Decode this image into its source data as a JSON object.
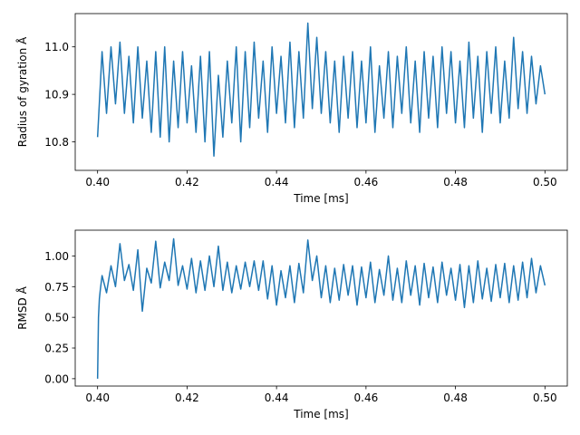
{
  "chart_data": [
    {
      "type": "line",
      "title": "",
      "xlabel": "Time [ms]",
      "ylabel": "Radius of gyration Å",
      "xlim": [
        0.395,
        0.505
      ],
      "ylim": [
        10.74,
        11.07
      ],
      "xticks": [
        0.4,
        0.42,
        0.44,
        0.46,
        0.48,
        0.5
      ],
      "xtick_labels": [
        "0.40",
        "0.42",
        "0.44",
        "0.46",
        "0.48",
        "0.50"
      ],
      "yticks": [
        10.8,
        10.9,
        11.0
      ],
      "ytick_labels": [
        "10.8",
        "10.9",
        "11.0"
      ],
      "grid": false,
      "color": "#1f77b4",
      "series": [
        {
          "x": [
            0.4,
            0.401,
            0.402,
            0.403,
            0.404,
            0.405,
            0.406,
            0.407,
            0.408,
            0.409,
            0.41,
            0.411,
            0.412,
            0.413,
            0.414,
            0.415,
            0.416,
            0.417,
            0.418,
            0.419,
            0.42,
            0.421,
            0.422,
            0.423,
            0.424,
            0.425,
            0.426,
            0.427,
            0.428,
            0.429,
            0.43,
            0.431,
            0.432,
            0.433,
            0.434,
            0.435,
            0.436,
            0.437,
            0.438,
            0.439,
            0.44,
            0.441,
            0.442,
            0.443,
            0.444,
            0.445,
            0.446,
            0.447,
            0.448,
            0.449,
            0.45,
            0.451,
            0.452,
            0.453,
            0.454,
            0.455,
            0.456,
            0.457,
            0.458,
            0.459,
            0.46,
            0.461,
            0.462,
            0.463,
            0.464,
            0.465,
            0.466,
            0.467,
            0.468,
            0.469,
            0.47,
            0.471,
            0.472,
            0.473,
            0.474,
            0.475,
            0.476,
            0.477,
            0.478,
            0.479,
            0.48,
            0.481,
            0.482,
            0.483,
            0.484,
            0.485,
            0.486,
            0.487,
            0.488,
            0.489,
            0.49,
            0.491,
            0.492,
            0.493,
            0.494,
            0.495,
            0.496,
            0.497,
            0.498,
            0.499,
            0.5
          ],
          "y": [
            10.81,
            10.99,
            10.86,
            11.0,
            10.88,
            11.01,
            10.86,
            10.98,
            10.84,
            11.0,
            10.85,
            10.97,
            10.82,
            10.99,
            10.81,
            11.0,
            10.8,
            10.97,
            10.83,
            10.99,
            10.84,
            10.96,
            10.82,
            10.98,
            10.8,
            10.99,
            10.77,
            10.94,
            10.81,
            10.97,
            10.84,
            11.0,
            10.8,
            10.99,
            10.83,
            11.01,
            10.85,
            10.97,
            10.82,
            11.0,
            10.86,
            10.98,
            10.84,
            11.01,
            10.83,
            10.99,
            10.85,
            11.05,
            10.87,
            11.02,
            10.86,
            10.99,
            10.84,
            10.97,
            10.82,
            10.98,
            10.85,
            10.99,
            10.83,
            10.97,
            10.84,
            11.0,
            10.82,
            10.96,
            10.85,
            10.99,
            10.83,
            10.98,
            10.86,
            11.0,
            10.84,
            10.97,
            10.82,
            10.99,
            10.85,
            10.98,
            10.83,
            11.0,
            10.86,
            10.99,
            10.84,
            10.97,
            10.83,
            11.01,
            10.85,
            10.98,
            10.82,
            10.99,
            10.86,
            11.0,
            10.84,
            10.97,
            10.85,
            11.02,
            10.87,
            10.99,
            10.86,
            10.98,
            10.88,
            10.96,
            10.9
          ]
        }
      ]
    },
    {
      "type": "line",
      "title": "",
      "xlabel": "Time [ms]",
      "ylabel": "RMSD Å",
      "xlim": [
        0.395,
        0.505
      ],
      "ylim": [
        -0.06,
        1.21
      ],
      "xticks": [
        0.4,
        0.42,
        0.44,
        0.46,
        0.48,
        0.5
      ],
      "xtick_labels": [
        "0.40",
        "0.42",
        "0.44",
        "0.46",
        "0.48",
        "0.50"
      ],
      "yticks": [
        0.0,
        0.25,
        0.5,
        0.75,
        1.0
      ],
      "ytick_labels": [
        "0.00",
        "0.25",
        "0.50",
        "0.75",
        "1.00"
      ],
      "grid": false,
      "color": "#1f77b4",
      "series": [
        {
          "x": [
            0.4,
            0.4002,
            0.4004,
            0.4006,
            0.4008,
            0.401,
            0.402,
            0.403,
            0.404,
            0.405,
            0.406,
            0.407,
            0.408,
            0.409,
            0.41,
            0.411,
            0.412,
            0.413,
            0.414,
            0.415,
            0.416,
            0.417,
            0.418,
            0.419,
            0.42,
            0.421,
            0.422,
            0.423,
            0.424,
            0.425,
            0.426,
            0.427,
            0.428,
            0.429,
            0.43,
            0.431,
            0.432,
            0.433,
            0.434,
            0.435,
            0.436,
            0.437,
            0.438,
            0.439,
            0.44,
            0.441,
            0.442,
            0.443,
            0.444,
            0.445,
            0.446,
            0.447,
            0.448,
            0.449,
            0.45,
            0.451,
            0.452,
            0.453,
            0.454,
            0.455,
            0.456,
            0.457,
            0.458,
            0.459,
            0.46,
            0.461,
            0.462,
            0.463,
            0.464,
            0.465,
            0.466,
            0.467,
            0.468,
            0.469,
            0.47,
            0.471,
            0.472,
            0.473,
            0.474,
            0.475,
            0.476,
            0.477,
            0.478,
            0.479,
            0.48,
            0.481,
            0.482,
            0.483,
            0.484,
            0.485,
            0.486,
            0.487,
            0.488,
            0.489,
            0.49,
            0.491,
            0.492,
            0.493,
            0.494,
            0.495,
            0.496,
            0.497,
            0.498,
            0.499,
            0.5
          ],
          "y": [
            0.0,
            0.5,
            0.65,
            0.72,
            0.78,
            0.84,
            0.7,
            0.92,
            0.75,
            1.1,
            0.8,
            0.93,
            0.72,
            1.05,
            0.55,
            0.9,
            0.78,
            1.12,
            0.74,
            0.95,
            0.8,
            1.14,
            0.76,
            0.92,
            0.73,
            0.98,
            0.7,
            0.96,
            0.72,
            1.0,
            0.75,
            1.08,
            0.72,
            0.95,
            0.7,
            0.92,
            0.73,
            0.95,
            0.75,
            0.96,
            0.72,
            0.96,
            0.65,
            0.92,
            0.6,
            0.88,
            0.66,
            0.92,
            0.62,
            0.94,
            0.7,
            1.13,
            0.8,
            1.0,
            0.66,
            0.92,
            0.62,
            0.9,
            0.64,
            0.93,
            0.68,
            0.92,
            0.6,
            0.91,
            0.66,
            0.95,
            0.62,
            0.89,
            0.68,
            1.0,
            0.64,
            0.9,
            0.62,
            0.96,
            0.68,
            0.92,
            0.6,
            0.94,
            0.66,
            0.91,
            0.62,
            0.95,
            0.68,
            0.9,
            0.64,
            0.93,
            0.58,
            0.92,
            0.62,
            0.96,
            0.65,
            0.9,
            0.63,
            0.93,
            0.66,
            0.94,
            0.62,
            0.92,
            0.64,
            0.95,
            0.66,
            0.98,
            0.7,
            0.92,
            0.76
          ]
        }
      ]
    }
  ]
}
